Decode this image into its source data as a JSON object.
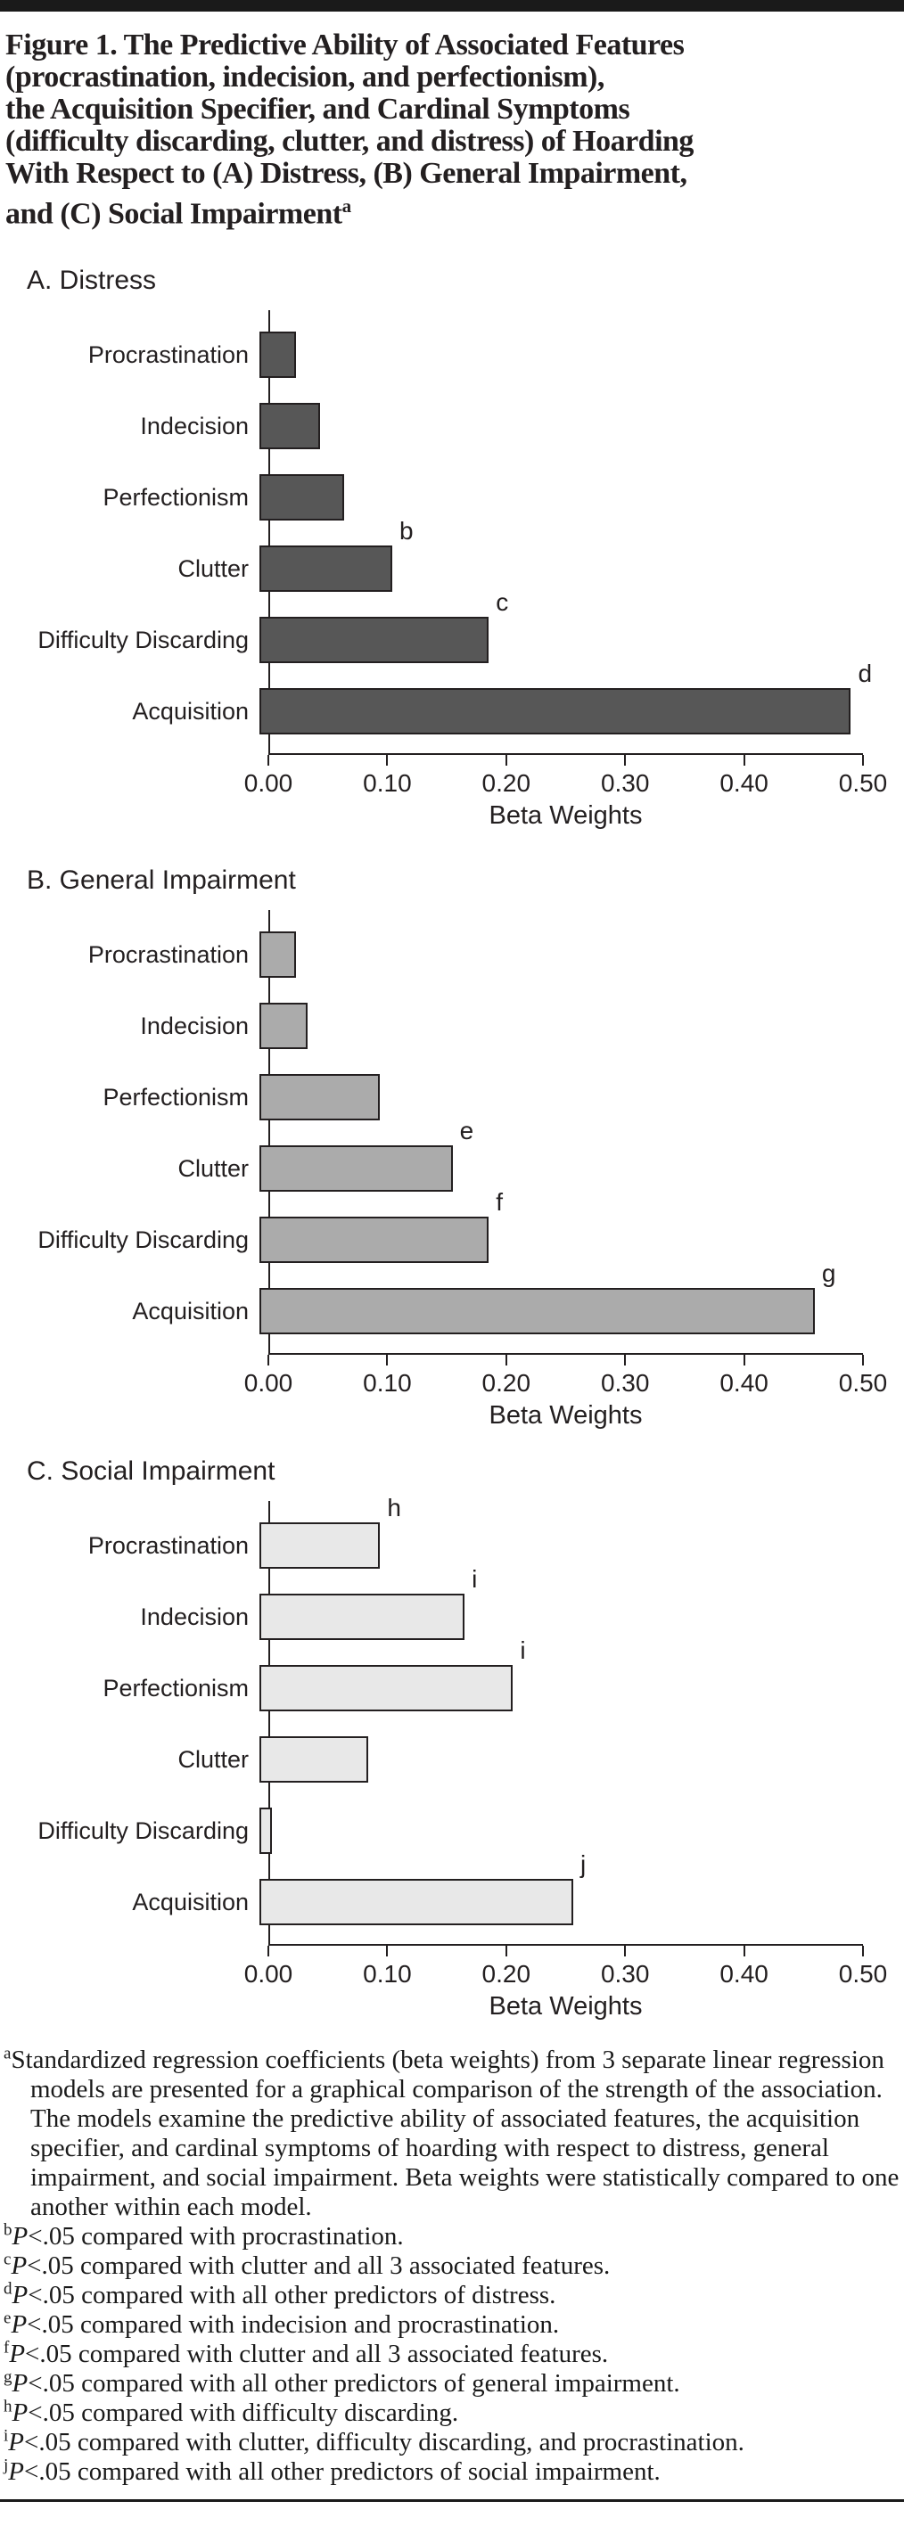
{
  "figure_title": {
    "lines": [
      "Figure 1. The Predictive Ability of Associated Features",
      "(procrastination, indecision, and perfectionism),",
      "the Acquisition Specifier, and Cardinal Symptoms",
      "(difficulty discarding, clutter, and distress) of Hoarding",
      "With Respect to (A) Distress, (B) General Impairment,",
      "and (C) Social Impairment"
    ],
    "superscript": "a"
  },
  "chart_data": [
    {
      "type": "bar",
      "orientation": "horizontal",
      "title": "A. Distress",
      "categories": [
        "Procrastination",
        "Indecision",
        "Perfectionism",
        "Clutter",
        "Difficulty Discarding",
        "Acquisition"
      ],
      "values": [
        0.03,
        0.05,
        0.07,
        0.11,
        0.19,
        0.49
      ],
      "annotations": [
        "",
        "",
        "",
        "b",
        "c",
        "d"
      ],
      "xlabel": "Beta Weights",
      "xlim": [
        0,
        0.5
      ],
      "xtick_labels": [
        "0.00",
        "0.10",
        "0.20",
        "0.30",
        "0.40",
        "0.50"
      ],
      "bar_color": "#575757",
      "bar_border": "#231f20",
      "grid": "off",
      "legend": "none"
    },
    {
      "type": "bar",
      "orientation": "horizontal",
      "title": "B. General Impairment",
      "categories": [
        "Procrastination",
        "Indecision",
        "Perfectionism",
        "Clutter",
        "Difficulty Discarding",
        "Acquisition"
      ],
      "values": [
        0.03,
        0.04,
        0.1,
        0.16,
        0.19,
        0.46
      ],
      "annotations": [
        "",
        "",
        "",
        "e",
        "f",
        "g"
      ],
      "xlabel": "Beta Weights",
      "xlim": [
        0,
        0.5
      ],
      "xtick_labels": [
        "0.00",
        "0.10",
        "0.20",
        "0.30",
        "0.40",
        "0.50"
      ],
      "bar_color": "#ababab",
      "bar_border": "#231f20",
      "grid": "off",
      "legend": "none"
    },
    {
      "type": "bar",
      "orientation": "horizontal",
      "title": "C. Social Impairment",
      "categories": [
        "Procrastination",
        "Indecision",
        "Perfectionism",
        "Clutter",
        "Difficulty Discarding",
        "Acquisition"
      ],
      "values": [
        0.1,
        0.17,
        0.21,
        0.09,
        0.01,
        0.26
      ],
      "annotations": [
        "h",
        "i",
        "i",
        "",
        "",
        "j"
      ],
      "xlabel": "Beta Weights",
      "xlim": [
        0,
        0.5
      ],
      "xtick_labels": [
        "0.00",
        "0.10",
        "0.20",
        "0.30",
        "0.40",
        "0.50"
      ],
      "bar_color": "#e8e8e8",
      "bar_border": "#231f20",
      "grid": "off",
      "legend": "none"
    }
  ],
  "footnotes": {
    "a": {
      "sup": "a",
      "text": "Standardized regression coefficients (beta weights) from 3 separate linear regression models are presented for a graphical comparison of the strength of the association. The models examine the predictive ability of associated features, the acquisition specifier, and cardinal symptoms of hoarding with respect to distress, general impairment, and social impairment. Beta weights were statistically compared to one another within each model."
    },
    "items": [
      {
        "sup": "b",
        "p": "P",
        "text": "<.05 compared with procrastination."
      },
      {
        "sup": "c",
        "p": "P",
        "text": "<.05 compared with clutter and all 3 associated features."
      },
      {
        "sup": "d",
        "p": "P",
        "text": "<.05 compared with all other predictors of distress."
      },
      {
        "sup": "e",
        "p": "P",
        "text": "<.05 compared with indecision and procrastination."
      },
      {
        "sup": "f",
        "p": "P",
        "text": "<.05 compared with clutter and all 3 associated features."
      },
      {
        "sup": "g",
        "p": "P",
        "text": "<.05 compared with all other predictors of general impairment."
      },
      {
        "sup": "h",
        "p": "P",
        "text": "<.05 compared with difficulty discarding."
      },
      {
        "sup": "i",
        "p": "P",
        "text": "<.05 compared with clutter, difficulty discarding, and procrastination."
      },
      {
        "sup": "j",
        "p": "P",
        "text": "<.05 compared with all other predictors of social impairment."
      }
    ]
  },
  "colors": {
    "axis": "#231f20",
    "top_rule": "#1a1a1a",
    "bottom_rule": "#1a1a1a"
  }
}
